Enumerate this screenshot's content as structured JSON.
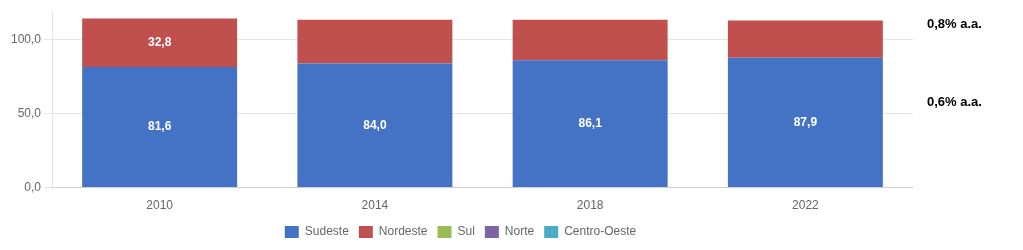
{
  "chart_data": {
    "type": "bar",
    "categories": [
      "2010",
      "2014",
      "2018",
      "2022"
    ],
    "series": [
      {
        "name": "Sudeste",
        "color": "#4472C4",
        "values": [
          81.6,
          84.0,
          86.1,
          87.9
        ],
        "value_labels": [
          "81,6",
          "84,0",
          "86,1",
          "87,9"
        ]
      },
      {
        "name": "Nordeste",
        "color": "#C0504D",
        "values": [
          32.8,
          29.5,
          27.4,
          25.2
        ],
        "value_labels": [
          "32,8",
          null,
          null,
          null
        ]
      },
      {
        "name": "Sul",
        "color": "#9BBB59",
        "values": [
          null,
          null,
          null,
          null
        ]
      },
      {
        "name": "Norte",
        "color": "#8064A2",
        "values": [
          null,
          null,
          null,
          null
        ]
      },
      {
        "name": "Centro-Oeste",
        "color": "#4BACC6",
        "values": [
          null,
          null,
          null,
          null
        ]
      }
    ],
    "stacked": true,
    "data_labels": true,
    "annotations": [
      "0,8% a.a.",
      "0,6% a.a."
    ],
    "ylim": [
      0,
      120
    ],
    "yticks": [
      {
        "value": 0,
        "label": "0,0"
      },
      {
        "value": 50,
        "label": "50,0"
      },
      {
        "value": 100,
        "label": "100,0"
      }
    ],
    "grid": true,
    "legend": "bottom"
  }
}
